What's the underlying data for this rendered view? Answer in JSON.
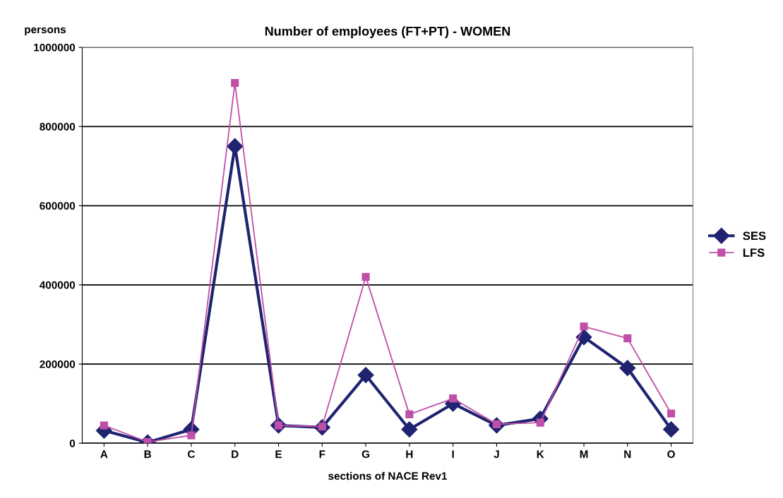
{
  "chart_data": {
    "type": "line",
    "title": "Number of employees (FT+PT) - WOMEN",
    "ylabel": "persons",
    "xlabel": "sections of NACE Rev1",
    "categories": [
      "A",
      "B",
      "C",
      "D",
      "E",
      "F",
      "G",
      "H",
      "I",
      "J",
      "K",
      "M",
      "N",
      "O"
    ],
    "series": [
      {
        "name": "SES",
        "color": "#1f2370",
        "marker": "diamond",
        "values": [
          32000,
          2000,
          35000,
          750000,
          45000,
          40000,
          172000,
          35000,
          100000,
          45000,
          62000,
          268000,
          190000,
          35000
        ]
      },
      {
        "name": "LFS",
        "color": "#c04fa8",
        "marker": "square",
        "values": [
          45000,
          3000,
          20000,
          910000,
          45000,
          42000,
          420000,
          73000,
          113000,
          48000,
          52000,
          295000,
          265000,
          75000
        ]
      }
    ],
    "ylim": [
      0,
      1000000
    ],
    "yticks": [
      0,
      200000,
      400000,
      600000,
      800000,
      1000000
    ],
    "grid": "y",
    "legend": "right"
  }
}
